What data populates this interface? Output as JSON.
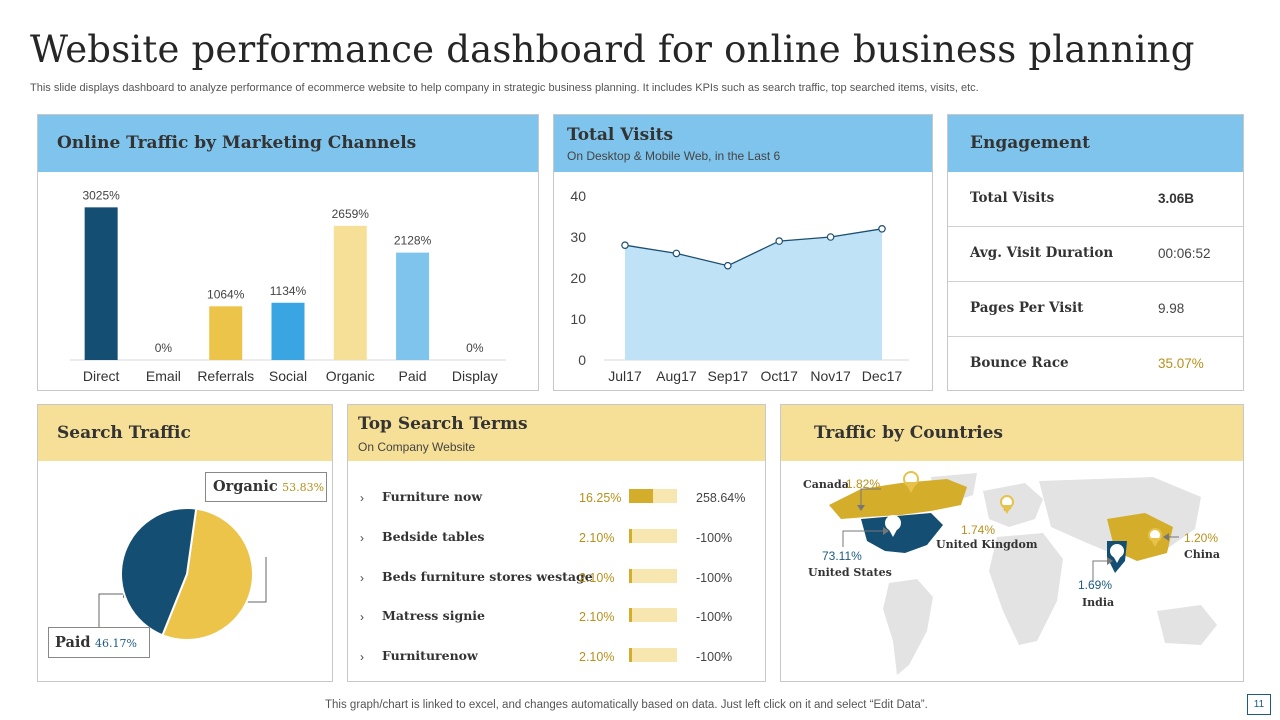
{
  "title": "Website performance dashboard for online business planning",
  "subtitle": "This slide displays dashboard to analyze performance of ecommerce website to help company in strategic business planning. It includes KPIs such as search traffic, top searched items, visits, etc.",
  "colors": {
    "blue_head": "#7fc4ec",
    "yellow_head": "#f6df96",
    "navy": "#144f73",
    "gold": "#ecc44a",
    "sky": "#7fc4ec",
    "bright_blue": "#3aa5e3",
    "light_yellow": "#f6df96"
  },
  "online_traffic": {
    "title": "Online Traffic by Marketing Channels",
    "chart_data": {
      "type": "bar",
      "categories": [
        "Direct",
        "Email",
        "Referrals",
        "Social",
        "Organic",
        "Paid",
        "Display"
      ],
      "values": [
        3025,
        0,
        1064,
        1134,
        2659,
        2128,
        0
      ],
      "labels": [
        "3025%",
        "0%",
        "1064%",
        "1134%",
        "2659%",
        "2128%",
        "0%"
      ],
      "colors": [
        "#144f73",
        "#144f73",
        "#ecc44a",
        "#3aa5e3",
        "#f6df96",
        "#7fc4ec",
        "#7fc4ec"
      ],
      "ylim": [
        0,
        3250
      ]
    }
  },
  "total_visits": {
    "title": "Total Visits",
    "subtitle": "On Desktop & Mobile Web, in the Last 6",
    "chart_data": {
      "type": "area",
      "categories": [
        "Jul17",
        "Aug17",
        "Sep17",
        "Oct17",
        "Nov17",
        "Dec17"
      ],
      "values": [
        28,
        26,
        23,
        29,
        30,
        32
      ],
      "ylim": [
        0,
        40
      ],
      "yticks": [
        "0",
        "10",
        "20",
        "30",
        "40"
      ]
    }
  },
  "engagement": {
    "title": "Engagement",
    "rows": [
      {
        "label": "Total Visits",
        "value": "3.06B",
        "color": "#333333",
        "bold": true
      },
      {
        "label": "Avg. Visit Duration",
        "value": "00:06:52",
        "color": "#444444",
        "bold": false
      },
      {
        "label": "Pages Per Visit",
        "value": "9.98",
        "color": "#444444",
        "bold": false
      },
      {
        "label": "Bounce Race",
        "value": "35.07%",
        "color": "#b8901a",
        "bold": false
      }
    ]
  },
  "search_traffic": {
    "title": "Search Traffic",
    "chart_data": {
      "type": "pie",
      "slices": [
        {
          "name": "Organic",
          "value": 53.83,
          "label": "53.83%",
          "color": "#ecc44a"
        },
        {
          "name": "Paid",
          "value": 46.17,
          "label": "46.17%",
          "color": "#144f73"
        }
      ]
    }
  },
  "top_search": {
    "title": "Top Search Terms",
    "subtitle": "On Company Website",
    "terms": [
      {
        "label": "Furniture now",
        "pct": "16.25%",
        "share": 0.5,
        "change": "258.64%"
      },
      {
        "label": "Bedside tables",
        "pct": "2.10%",
        "share": 0.07,
        "change": "-100%"
      },
      {
        "label": "Beds furniture stores westage",
        "pct": "2.10%",
        "share": 0.07,
        "change": "-100%"
      },
      {
        "label": "Matress signie",
        "pct": "2.10%",
        "share": 0.07,
        "change": "-100%"
      },
      {
        "label": "Furniturenow",
        "pct": "2.10%",
        "share": 0.07,
        "change": "-100%"
      }
    ],
    "arrow_glyph": "›"
  },
  "countries": {
    "title": "Traffic by Countries",
    "items": [
      {
        "name": "Canada",
        "value": "1.82%"
      },
      {
        "name": "United States",
        "value": "73.11%"
      },
      {
        "name": "United Kingdom",
        "value": "1.74%"
      },
      {
        "name": "India",
        "value": "1.69%"
      },
      {
        "name": "China",
        "value": "1.20%"
      }
    ]
  },
  "footer": "This graph/chart is linked to excel,  and changes automatically based on data. Just left click on it and select “Edit Data”.",
  "page_number": "11"
}
